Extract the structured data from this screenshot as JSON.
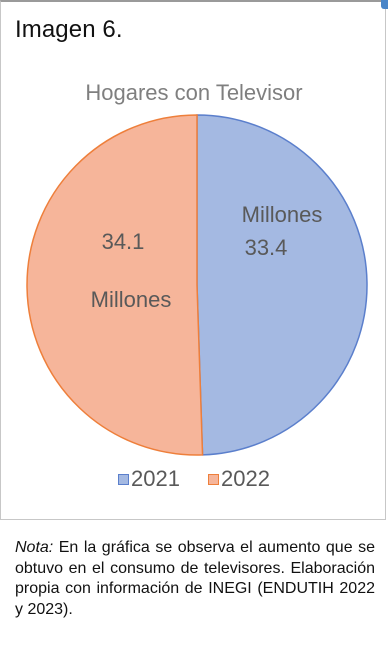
{
  "caption": "Imagen 6.",
  "chart_data": {
    "type": "pie",
    "title": "Hogares con Televisor",
    "categories": [
      "2021",
      "2022"
    ],
    "values": [
      33.4,
      34.1
    ],
    "unit": "Millones",
    "colors": [
      "#a4b9e2",
      "#f6b59a"
    ],
    "edge_colors": [
      "#5b7fcc",
      "#ee7f3b"
    ],
    "legend_position": "bottom",
    "data_labels": [
      {
        "value": "33.4",
        "unit": "Millones"
      },
      {
        "value": "34.1",
        "unit": "Millones"
      }
    ]
  },
  "note": {
    "label": "Nota:",
    "text": " En la gráfica se observa el aumento que se obtuvo en el consumo de televisores. Elaboración propia con información de INEGI (ENDUTIH 2022 y 2023)."
  }
}
